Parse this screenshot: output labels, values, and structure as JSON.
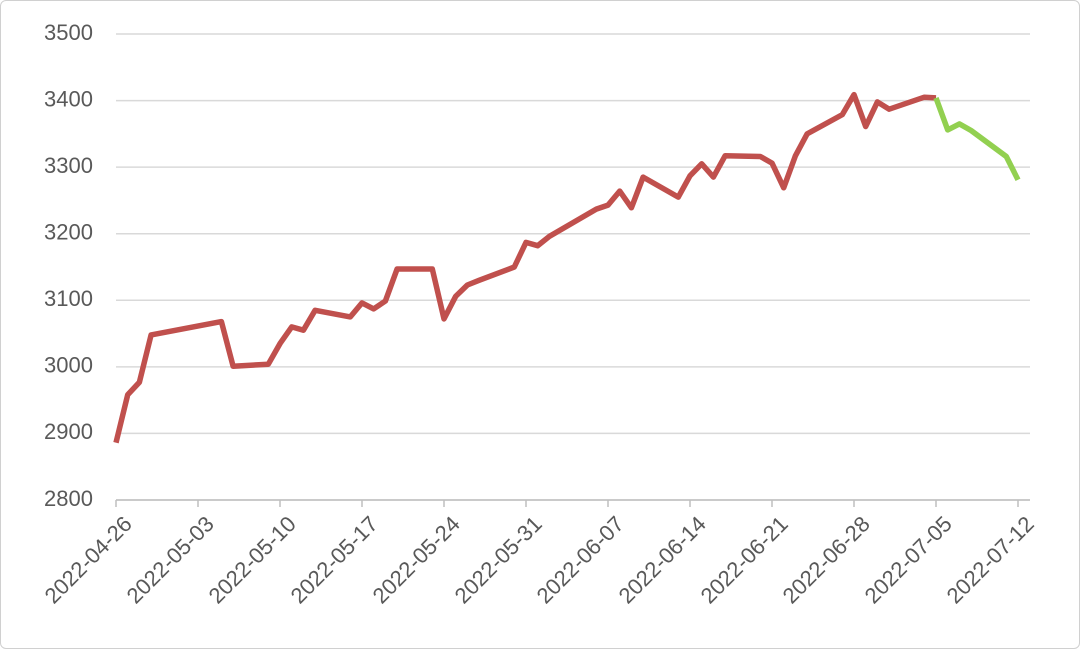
{
  "chart_data": {
    "type": "line",
    "x": [
      "2022-04-26",
      "2022-04-27",
      "2022-04-28",
      "2022-04-29",
      "2022-05-05",
      "2022-05-06",
      "2022-05-09",
      "2022-05-10",
      "2022-05-11",
      "2022-05-12",
      "2022-05-13",
      "2022-05-16",
      "2022-05-17",
      "2022-05-18",
      "2022-05-19",
      "2022-05-20",
      "2022-05-23",
      "2022-05-24",
      "2022-05-25",
      "2022-05-26",
      "2022-05-27",
      "2022-05-30",
      "2022-05-31",
      "2022-06-01",
      "2022-06-02",
      "2022-06-06",
      "2022-06-07",
      "2022-06-08",
      "2022-06-09",
      "2022-06-10",
      "2022-06-13",
      "2022-06-14",
      "2022-06-15",
      "2022-06-16",
      "2022-06-17",
      "2022-06-20",
      "2022-06-21",
      "2022-06-22",
      "2022-06-23",
      "2022-06-24",
      "2022-06-27",
      "2022-06-28",
      "2022-06-29",
      "2022-06-30",
      "2022-07-01",
      "2022-07-04",
      "2022-07-05",
      "2022-07-06",
      "2022-07-07",
      "2022-07-08",
      "2022-07-11",
      "2022-07-12"
    ],
    "series": [
      {
        "color": "#c0504d",
        "values": [
          2886,
          2958,
          2977,
          3048,
          3068,
          3001,
          3004,
          3035,
          3060,
          3055,
          3085,
          3075,
          3096,
          3087,
          3099,
          3147,
          3147,
          3072,
          3106,
          3123,
          3130,
          3150,
          3187,
          3182,
          3196,
          3237,
          3243,
          3264,
          3239,
          3285,
          3255,
          3287,
          3305,
          3285,
          3317,
          3316,
          3306,
          3269,
          3317,
          3350,
          3379,
          3409,
          3361,
          3398,
          3387,
          3405,
          3404,
          null,
          null,
          null,
          null,
          null
        ]
      },
      {
        "color": "#92d050",
        "values": [
          null,
          null,
          null,
          null,
          null,
          null,
          null,
          null,
          null,
          null,
          null,
          null,
          null,
          null,
          null,
          null,
          null,
          null,
          null,
          null,
          null,
          null,
          null,
          null,
          null,
          null,
          null,
          null,
          null,
          null,
          null,
          null,
          null,
          null,
          null,
          null,
          null,
          null,
          null,
          null,
          null,
          null,
          null,
          null,
          null,
          null,
          3404,
          3356,
          3365,
          3355,
          3316,
          3281
        ]
      }
    ],
    "xlim": [
      "2022-04-26",
      "2022-07-12"
    ],
    "xticks": [
      "2022-04-26",
      "2022-05-03",
      "2022-05-10",
      "2022-05-17",
      "2022-05-24",
      "2022-05-31",
      "2022-06-07",
      "2022-06-14",
      "2022-06-21",
      "2022-06-28",
      "2022-07-05",
      "2022-07-12"
    ],
    "ylim": [
      2800,
      3500
    ],
    "yticks": [
      2800,
      2900,
      3000,
      3100,
      3200,
      3300,
      3400,
      3500
    ],
    "grid": true
  }
}
